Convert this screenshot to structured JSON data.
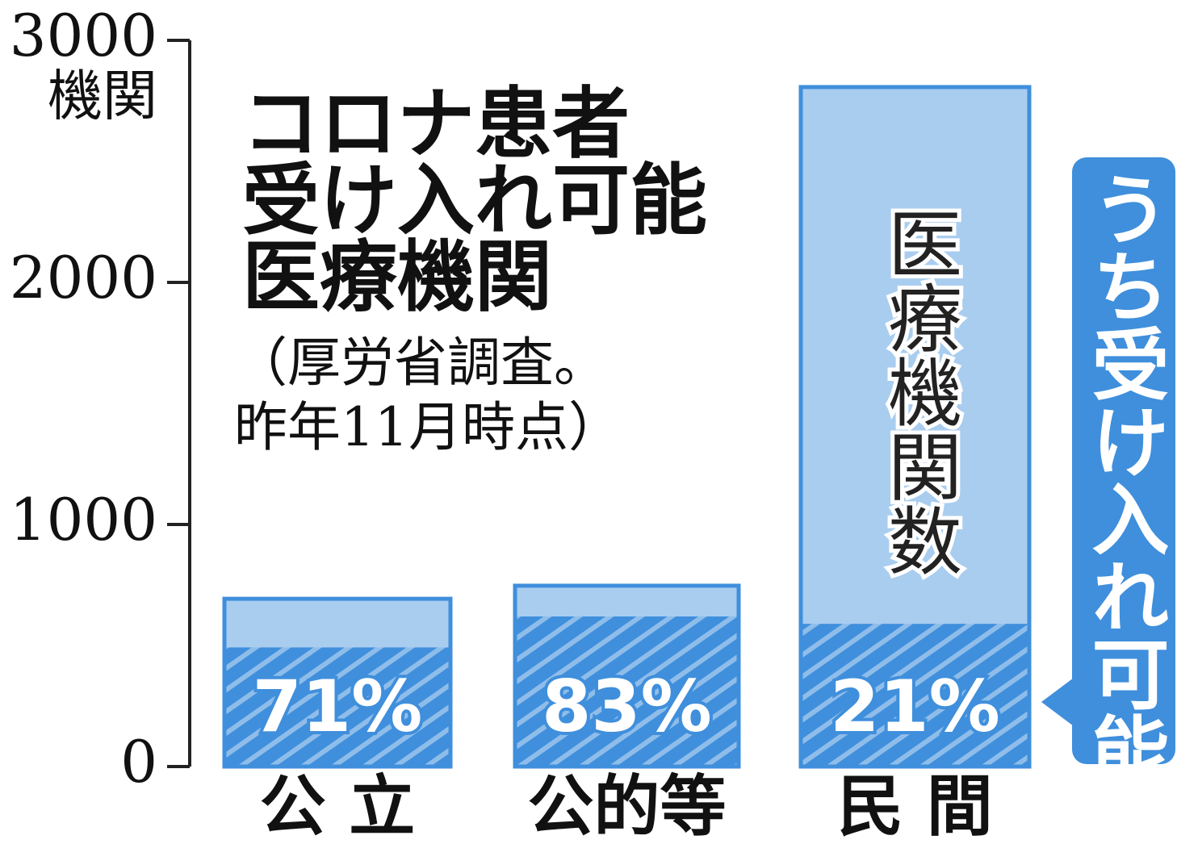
{
  "chart_data": {
    "type": "bar",
    "title_lines": [
      "コロナ患者",
      "受け入れ可能",
      "医療機関"
    ],
    "note_lines": [
      "（厚労省調査。",
      "昨年11月時点）"
    ],
    "y_unit": "機関",
    "categories": [
      "公 立",
      "公的等",
      "民 間"
    ],
    "series": [
      {
        "name": "医療機関数",
        "color": "#a9cdef",
        "values": [
          693,
          747,
          2807
        ]
      },
      {
        "name": "うち受け入れ可能",
        "color": "#3f8fdc",
        "values": [
          71,
          83,
          21
        ],
        "value_labels": [
          "71%",
          "83%",
          "21%"
        ]
      }
    ],
    "ylim": [
      0,
      3000
    ],
    "yticks": [
      0,
      1000,
      2000,
      3000
    ]
  }
}
